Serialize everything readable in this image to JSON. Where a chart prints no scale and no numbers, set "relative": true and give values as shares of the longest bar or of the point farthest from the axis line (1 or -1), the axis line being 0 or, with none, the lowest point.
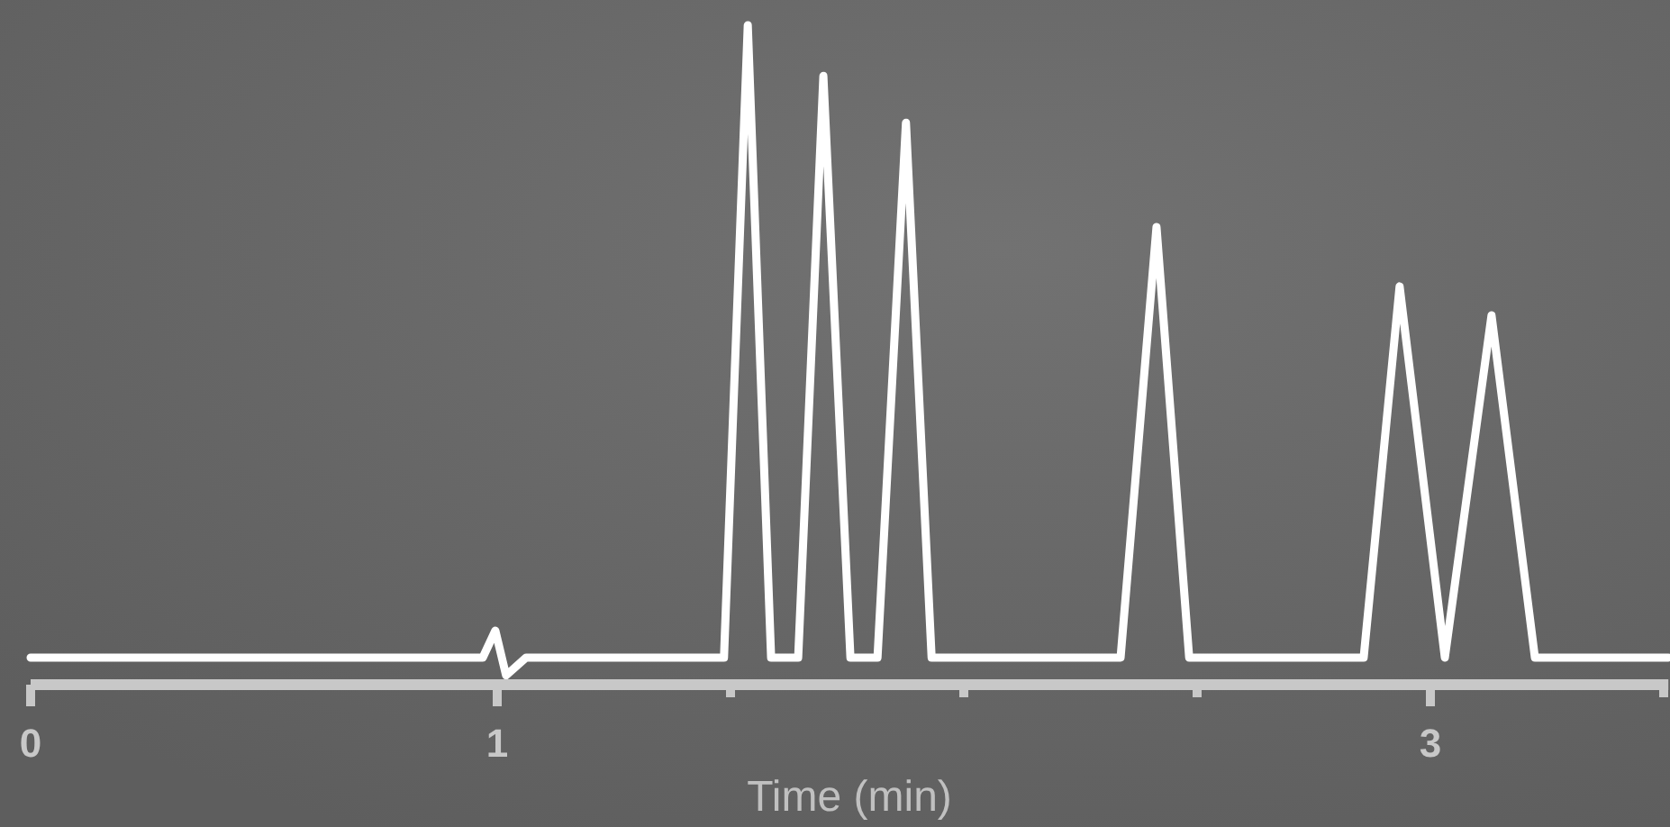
{
  "chart_data": {
    "type": "line",
    "relative": true,
    "xlabel": "Time (min)",
    "xlim": [
      0,
      3.51
    ],
    "xticks": [
      0,
      1,
      {
        "value": 1.5,
        "label": null
      },
      {
        "value": 2,
        "label": null
      },
      {
        "value": 2.5,
        "label": null
      },
      3,
      {
        "value": 3.5,
        "label": null
      }
    ],
    "marker": "none",
    "line_style": "solid",
    "series": [
      {
        "color": "#ffffff",
        "x": [
          0,
          0.969,
          0.996,
          1.019,
          1.062,
          1.486,
          1.537,
          1.587,
          1.645,
          1.699,
          1.757,
          1.815,
          1.876,
          1.931,
          2.336,
          2.413,
          2.483,
          2.857,
          2.934,
          3.031,
          3.131,
          3.224,
          3.51
        ],
        "values": [
          0.041,
          0.041,
          0.082,
          0.014,
          0.041,
          0.041,
          1,
          0.041,
          0.041,
          0.923,
          0.041,
          0.041,
          0.852,
          0.041,
          0.041,
          0.694,
          0.041,
          0.041,
          0.604,
          0.041,
          0.56,
          0.041,
          0.041
        ]
      }
    ]
  }
}
